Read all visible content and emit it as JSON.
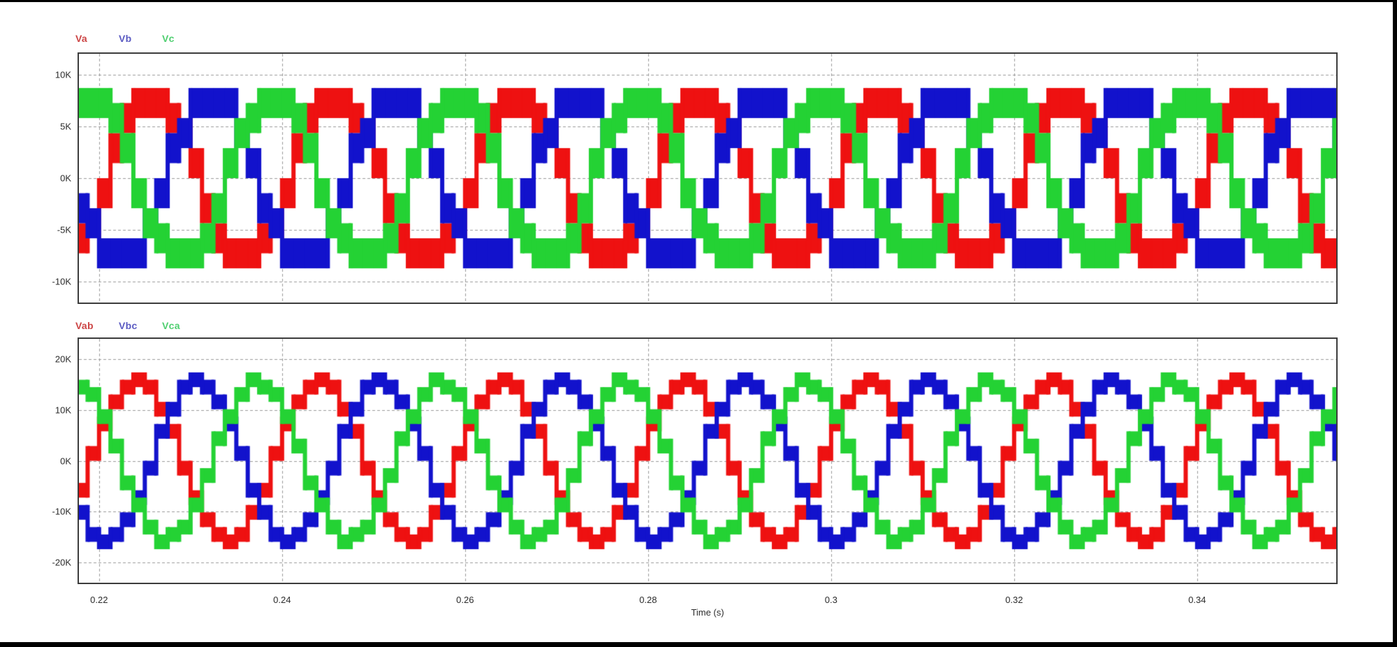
{
  "page": {
    "background": "#ffffff",
    "frame_color": "#000000",
    "grid_color": "#9a9a9a",
    "axis_box_color": "#3c3c3c",
    "tick_text_color": "#2b2b2b"
  },
  "chart_data": [
    {
      "id": "phase-voltages",
      "type": "line",
      "title": "",
      "legend": [
        {
          "label": "Va",
          "color": "#ee1111",
          "label_color": "#cc4545"
        },
        {
          "label": "Vb",
          "color": "#1212cc",
          "label_color": "#5a5ac2"
        },
        {
          "label": "Vc",
          "color": "#24d234",
          "label_color": "#4fcf70"
        }
      ],
      "x": {
        "min": 0.2178,
        "max": 0.3552,
        "ticks": [
          0.22,
          0.24,
          0.26,
          0.28,
          0.3,
          0.32,
          0.34
        ],
        "tick_labels": [
          "0.22",
          "0.24",
          "0.26",
          "0.28",
          "0.3",
          "0.32",
          "0.34"
        ],
        "show_tick_labels": false,
        "xlabel": ""
      },
      "y": {
        "min": -12000,
        "max": 12000,
        "ticks": [
          {
            "value": 10000,
            "label": "10K"
          },
          {
            "value": 5000,
            "label": "5K"
          },
          {
            "value": 0,
            "label": "0K"
          },
          {
            "value": -5000,
            "label": "-5K"
          },
          {
            "value": -10000,
            "label": "-10K"
          }
        ]
      },
      "grid": {
        "dashed": true,
        "vertical": true,
        "horizontal": true
      },
      "waveform": {
        "kind": "multilevel-stepped-sine",
        "frequency_hz": 50,
        "amplitude": 7400,
        "level_step": 1450,
        "band_levels": 2,
        "max_level": 8700,
        "samples_per_cycle": 16,
        "series": [
          {
            "name": "Va",
            "phase_deg": -3
          },
          {
            "name": "Vb",
            "phase_deg": -123
          },
          {
            "name": "Vc",
            "phase_deg": 117
          }
        ]
      }
    },
    {
      "id": "line-voltages",
      "type": "line",
      "title": "",
      "legend": [
        {
          "label": "Vab",
          "color": "#ee1111",
          "label_color": "#cc4545"
        },
        {
          "label": "Vbc",
          "color": "#1212cc",
          "label_color": "#5a5ac2"
        },
        {
          "label": "Vca",
          "color": "#24d234",
          "label_color": "#4fcf70"
        }
      ],
      "x": {
        "min": 0.2178,
        "max": 0.3552,
        "ticks": [
          0.22,
          0.24,
          0.26,
          0.28,
          0.3,
          0.32,
          0.34
        ],
        "tick_labels": [
          "0.22",
          "0.24",
          "0.26",
          "0.28",
          "0.3",
          "0.32",
          "0.34"
        ],
        "show_tick_labels": true,
        "xlabel": "Time (s)"
      },
      "y": {
        "min": -24000,
        "max": 24000,
        "ticks": [
          {
            "value": 20000,
            "label": "20K"
          },
          {
            "value": 10000,
            "label": "10K"
          },
          {
            "value": 0,
            "label": "0K"
          },
          {
            "value": -10000,
            "label": "-10K"
          },
          {
            "value": -20000,
            "label": "-20K"
          }
        ]
      },
      "grid": {
        "dashed": true,
        "vertical": true,
        "horizontal": true
      },
      "waveform": {
        "kind": "multilevel-stepped-sine",
        "frequency_hz": 50,
        "amplitude": 14800,
        "level_step": 1450,
        "band_levels": 2,
        "max_level": 17400,
        "samples_per_cycle": 16,
        "series": [
          {
            "name": "Vab",
            "phase_deg": 27
          },
          {
            "name": "Vbc",
            "phase_deg": -93
          },
          {
            "name": "Vca",
            "phase_deg": 147
          }
        ]
      }
    }
  ]
}
